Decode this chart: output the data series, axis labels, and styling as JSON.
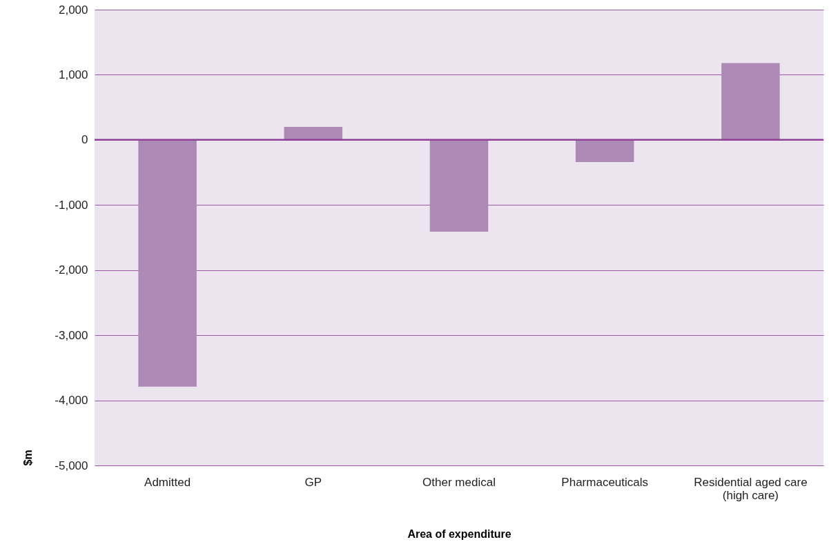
{
  "chart_data": {
    "type": "bar",
    "xlabel": "Area of expenditure",
    "ylabel": "$m",
    "categories": [
      "Admitted",
      "GP",
      "Other medical",
      "Pharmaceuticals",
      "Residential aged care (high care)"
    ],
    "values": [
      -3790,
      200,
      -1410,
      -340,
      1180
    ],
    "color": "#ad89b6",
    "ylim": [
      -5000,
      2000
    ],
    "yticks": [
      {
        "value": -5000,
        "label": "-5,000"
      },
      {
        "value": -4000,
        "label": "-4,000"
      },
      {
        "value": -3000,
        "label": "-3,000"
      },
      {
        "value": -2000,
        "label": "-2,000"
      },
      {
        "value": -1000,
        "label": "-1,000"
      },
      0,
      {
        "value": 1000,
        "label": "1,000"
      },
      {
        "value": 2000,
        "label": "2,000"
      }
    ],
    "grid": "y",
    "ref_lines": [
      {
        "axis": "y",
        "value": 0,
        "color": "#8e3f96"
      }
    ]
  }
}
